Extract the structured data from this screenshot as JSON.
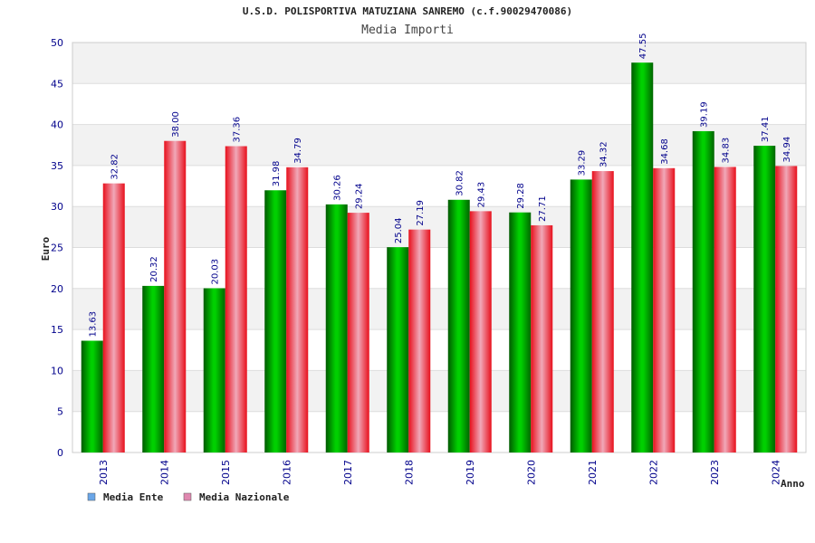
{
  "chart_data": {
    "type": "bar",
    "title": "U.S.D. POLISPORTIVA MATUZIANA SANREMO (c.f.90029470086)",
    "subtitle": "Media Importi",
    "xlabel": "Anno",
    "ylabel": "Euro",
    "ylim": [
      0,
      50
    ],
    "yticks": [
      0,
      5,
      10,
      15,
      20,
      25,
      30,
      35,
      40,
      45,
      50
    ],
    "grid": true,
    "legend_position": "bottom-left",
    "categories": [
      "2013",
      "2014",
      "2015",
      "2016",
      "2017",
      "2018",
      "2019",
      "2020",
      "2021",
      "2022",
      "2023",
      "2024"
    ],
    "series": [
      {
        "name": "Media Ente",
        "color": "#00b400",
        "legend_color": "#6aa6e8",
        "values": [
          13.63,
          20.32,
          20.03,
          31.98,
          30.26,
          25.04,
          30.82,
          29.28,
          33.29,
          47.55,
          39.19,
          37.41
        ],
        "labels": [
          "13.63",
          "20.32",
          "20.03",
          "31.98",
          "30.26",
          "25.04",
          "30.82",
          "29.28",
          "33.29",
          "47.55",
          "39.19",
          "37.41"
        ]
      },
      {
        "name": "Media Nazionale",
        "color": "#e8101c",
        "legend_color": "#e088b0",
        "values": [
          32.82,
          38.0,
          37.36,
          34.79,
          29.24,
          27.19,
          29.43,
          27.71,
          34.32,
          34.68,
          34.83,
          34.94
        ],
        "labels": [
          "32.82",
          "38.00",
          "37.36",
          "34.79",
          "29.24",
          "27.19",
          "29.43",
          "27.71",
          "34.32",
          "34.68",
          "34.83",
          "34.94"
        ]
      }
    ]
  }
}
